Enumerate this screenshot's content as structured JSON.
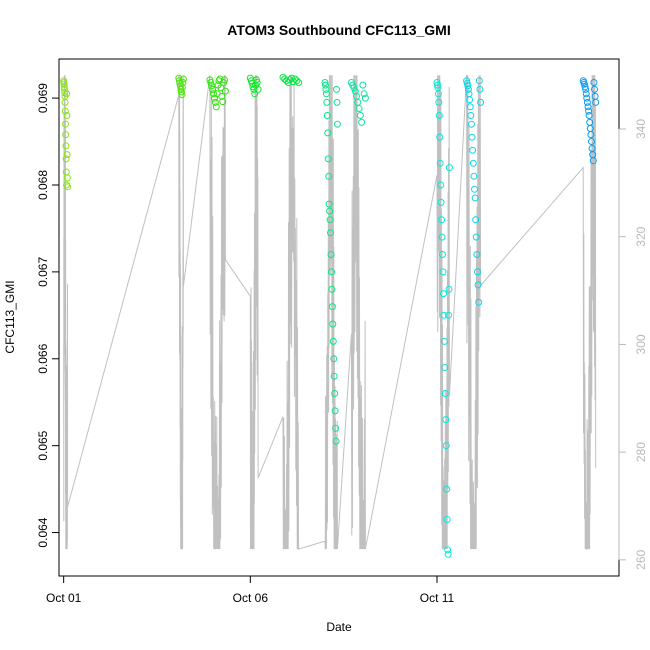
{
  "chart_data": {
    "type": "scatter",
    "title": "ATOM3 Southbound CFC113_GMI",
    "xlabel": "Date",
    "ylabel": "CFC113_GMI",
    "x_axis": {
      "type": "date",
      "range": [
        "2017-09-30T21:00",
        "2017-10-15T21:00"
      ],
      "ticks": [
        {
          "value": "2017-10-01",
          "label": "Oct 01"
        },
        {
          "value": "2017-10-06",
          "label": "Oct 06"
        },
        {
          "value": "2017-10-11",
          "label": "Oct 11"
        }
      ]
    },
    "y_axis_left": {
      "range": [
        0.0635,
        0.06945
      ],
      "ticks": [
        0.064,
        0.065,
        0.066,
        0.067,
        0.068,
        0.069
      ],
      "tick_labels": [
        "0.064",
        "0.065",
        "0.066",
        "0.067",
        "0.068",
        "0.069"
      ]
    },
    "y_axis_right": {
      "range": [
        257,
        353
      ],
      "ticks": [
        260,
        280,
        300,
        320,
        340
      ],
      "tick_labels": [
        "260",
        "280",
        "300",
        "320",
        "340"
      ],
      "color": "#b8b8b8"
    },
    "grid": false,
    "line_color": "#c0c0c0",
    "flight_segments": [
      {
        "start": "2017-10-01T00:00",
        "end": "2017-10-01T02:30",
        "color": "#88e614",
        "points": [
          0.0692,
          0.06918,
          0.06916,
          0.06913,
          0.0691,
          0.06906,
          0.06902,
          0.06895,
          0.06885,
          0.0687,
          0.06858,
          0.06845,
          0.0683,
          0.06815,
          0.068,
          0.06905,
          0.0688,
          0.06835,
          0.06808,
          0.06798
        ]
      },
      {
        "start": "2017-10-04T02:00",
        "end": "2017-10-04T05:00",
        "color": "#4de60a",
        "points": [
          0.06923,
          0.0692,
          0.06917,
          0.06914,
          0.0691,
          0.06907,
          0.06904,
          0.06912,
          0.06918,
          0.06922
        ]
      },
      {
        "start": "2017-10-04T22:00",
        "end": "2017-10-05T08:00",
        "color": "#2ee60a",
        "points": [
          0.06921,
          0.06918,
          0.06914,
          0.0691,
          0.06905,
          0.069,
          0.06895,
          0.0689,
          0.06905,
          0.06915,
          0.0692,
          0.06922,
          0.06912,
          0.06902,
          0.06896,
          0.06918,
          0.06921,
          0.06908
        ]
      },
      {
        "start": "2017-10-06T00:00",
        "end": "2017-10-06T05:00",
        "color": "#10e82a",
        "points": [
          0.06923,
          0.0692,
          0.06917,
          0.06913,
          0.0691,
          0.06905,
          0.06915,
          0.06921,
          0.06918,
          0.0691
        ]
      },
      {
        "start": "2017-10-06T21:00",
        "end": "2017-10-07T07:00",
        "color": "#0ae64a",
        "points": [
          0.06924,
          0.06922,
          0.0692,
          0.06918,
          0.06921,
          0.06923,
          0.06919,
          0.06922,
          0.0692,
          0.06918
        ]
      },
      {
        "start": "2017-10-08T00:00",
        "end": "2017-10-08T08:00",
        "color": "#0ae688",
        "points": [
          0.06918,
          0.06915,
          0.0691,
          0.06905,
          0.06895,
          0.0688,
          0.0686,
          0.0683,
          0.0681,
          0.06778,
          0.0677,
          0.0676,
          0.06745,
          0.0672,
          0.067,
          0.0668,
          0.0666,
          0.0664,
          0.0662,
          0.066,
          0.0658,
          0.0656,
          0.0654,
          0.0652,
          0.06505,
          0.0691,
          0.06895,
          0.0687
        ]
      },
      {
        "start": "2017-10-08T17:00",
        "end": "2017-10-09T02:00",
        "color": "#0ae6a0",
        "points": [
          0.06918,
          0.06915,
          0.06912,
          0.06908,
          0.06902,
          0.06895,
          0.06888,
          0.0688,
          0.06872,
          0.06915,
          0.06905,
          0.069
        ]
      },
      {
        "start": "2017-10-11T00:00",
        "end": "2017-10-11T08:00",
        "color": "#0ae6d6",
        "points": [
          0.06918,
          0.06915,
          0.06912,
          0.06905,
          0.06895,
          0.0688,
          0.06855,
          0.06825,
          0.068,
          0.0678,
          0.0676,
          0.0674,
          0.0672,
          0.067,
          0.06675,
          0.0665,
          0.0662,
          0.0659,
          0.0656,
          0.0653,
          0.065,
          0.0645,
          0.06415,
          0.0638,
          0.06375,
          0.0665,
          0.0668,
          0.0682
        ]
      },
      {
        "start": "2017-10-11T19:00",
        "end": "2017-10-12T04:00",
        "color": "#0ad6e6",
        "points": [
          0.0692,
          0.06917,
          0.06914,
          0.0691,
          0.06905,
          0.06898,
          0.0689,
          0.0688,
          0.0687,
          0.06855,
          0.0684,
          0.06825,
          0.0681,
          0.06795,
          0.06785,
          0.0676,
          0.0674,
          0.0672,
          0.067,
          0.06685,
          0.06665,
          0.0692,
          0.0691,
          0.06895
        ]
      },
      {
        "start": "2017-10-14T22:00",
        "end": "2017-10-15T06:00",
        "color": "#0a9ef0",
        "points": [
          0.0692,
          0.06918,
          0.06916,
          0.06913,
          0.0691,
          0.06905,
          0.069,
          0.06895,
          0.0689,
          0.06885,
          0.0688,
          0.06872,
          0.06865,
          0.06858,
          0.0685,
          0.06842,
          0.06835,
          0.06828,
          0.06918,
          0.0691,
          0.06902,
          0.06895
        ]
      }
    ]
  }
}
